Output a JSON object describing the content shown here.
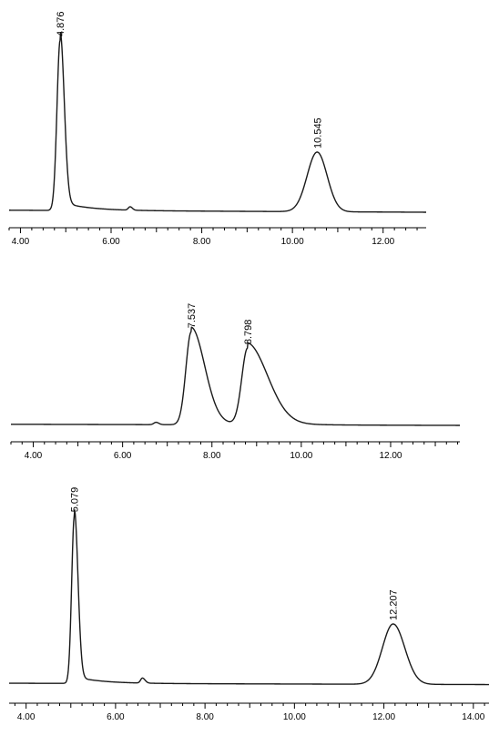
{
  "chart_data": [
    {
      "type": "line",
      "title": "",
      "xlabel": "",
      "ylabel": "",
      "xlim": [
        3.75,
        12.95
      ],
      "ylim": [
        0,
        1.0
      ],
      "grid": false,
      "x_ticks": [
        "4.00",
        "6.00",
        "8.00",
        "10.00",
        "12.00"
      ],
      "baseline": {
        "start": 0.012,
        "end": 0.0
      },
      "series": [
        {
          "peaks": [
            {
              "rt": 4.876,
              "height": 1.0,
              "sigma_left": 0.07,
              "sigma_right": 0.09,
              "tail": 0.05
            },
            {
              "rt": 6.42,
              "height": 0.02,
              "sigma_left": 0.04,
              "sigma_right": 0.05,
              "tail": 0.0
            },
            {
              "rt": 10.545,
              "height": 0.35,
              "sigma_left": 0.22,
              "sigma_right": 0.22,
              "tail": 0.0
            }
          ]
        }
      ],
      "peak_labels": [
        "4.876",
        "10.545"
      ]
    },
    {
      "type": "line",
      "title": "",
      "xlabel": "",
      "ylabel": "",
      "xlim": [
        3.5,
        13.55
      ],
      "ylim": [
        0,
        1.0
      ],
      "grid": false,
      "x_ticks": [
        "4.00",
        "6.00",
        "8.00",
        "10.00",
        "12.00"
      ],
      "baseline": {
        "start": 0.012,
        "end": 0.0
      },
      "series": [
        {
          "peaks": [
            {
              "rt": 6.75,
              "height": 0.025,
              "sigma_left": 0.05,
              "sigma_right": 0.06,
              "tail": 0.0
            },
            {
              "rt": 7.537,
              "height": 1.0,
              "sigma_left": 0.12,
              "sigma_right": 0.3,
              "tail": 0.05
            },
            {
              "rt": 8.798,
              "height": 0.82,
              "sigma_left": 0.13,
              "sigma_right": 0.45,
              "tail": 0.07
            }
          ]
        }
      ],
      "peak_labels": [
        "7.537",
        "8.798"
      ]
    },
    {
      "type": "line",
      "title": "",
      "xlabel": "",
      "ylabel": "",
      "xlim": [
        3.62,
        14.35
      ],
      "ylim": [
        0,
        1.0
      ],
      "grid": false,
      "x_ticks": [
        "4.00",
        "6.00",
        "8.00",
        "10.00",
        "12.00",
        "14.00"
      ],
      "baseline": {
        "start": 0.016,
        "end": 0.008
      },
      "series": [
        {
          "peaks": [
            {
              "rt": 5.079,
              "height": 1.0,
              "sigma_left": 0.06,
              "sigma_right": 0.08,
              "tail": 0.04
            },
            {
              "rt": 6.6,
              "height": 0.03,
              "sigma_left": 0.04,
              "sigma_right": 0.06,
              "tail": 0.0
            },
            {
              "rt": 12.207,
              "height": 0.36,
              "sigma_left": 0.24,
              "sigma_right": 0.26,
              "tail": 0.0
            }
          ]
        }
      ],
      "peak_labels": [
        "5.079",
        "12.207"
      ]
    }
  ]
}
